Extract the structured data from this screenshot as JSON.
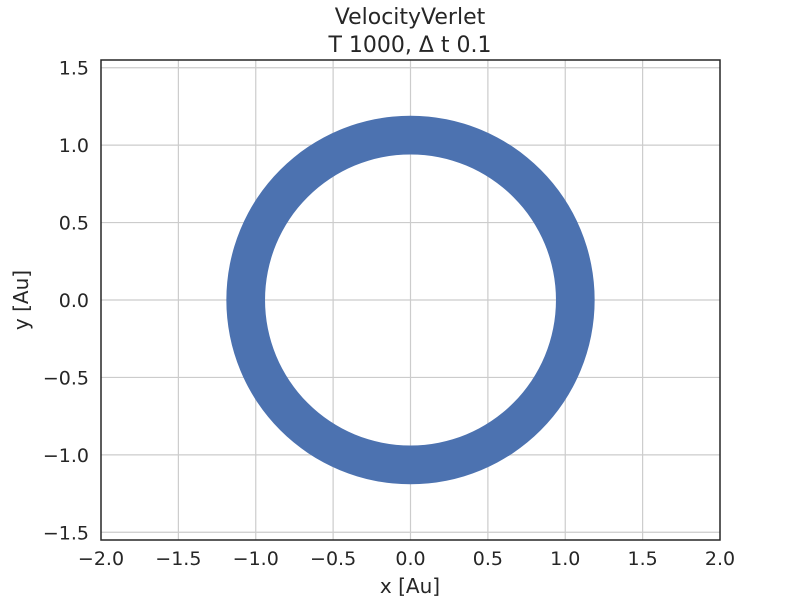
{
  "chart_data": {
    "type": "line",
    "title": [
      "VelocityVerlet",
      "T 1000, Δ t 0.1"
    ],
    "xlabel": "x [Au]",
    "ylabel": "y [Au]",
    "xlim": [
      -2.0,
      2.0
    ],
    "ylim": [
      -1.55,
      1.55
    ],
    "xticks": [
      -2.0,
      -1.5,
      -1.0,
      -0.5,
      0.0,
      0.5,
      1.0,
      1.5,
      2.0
    ],
    "yticks": [
      -1.5,
      -1.0,
      -0.5,
      0.0,
      0.5,
      1.0,
      1.5
    ],
    "xtick_labels": [
      "−2.0",
      "−1.5",
      "−1.0",
      "−0.5",
      "0.0",
      "0.5",
      "1.0",
      "1.5",
      "2.0"
    ],
    "ytick_labels": [
      "−1.5",
      "−1.0",
      "−0.5",
      "0.0",
      "0.5",
      "1.0",
      "1.5"
    ],
    "grid": true,
    "series": [
      {
        "description_units": "orbit radius band in Au",
        "shape": "annulus",
        "center": [
          0.0,
          0.0
        ],
        "r_inner": 0.94,
        "r_outer": 1.19,
        "color": "#4c72b0"
      }
    ]
  },
  "colors": {
    "series": "#4c72b0",
    "grid": "#cccccc",
    "frame": "#262626",
    "text": "#262626"
  }
}
